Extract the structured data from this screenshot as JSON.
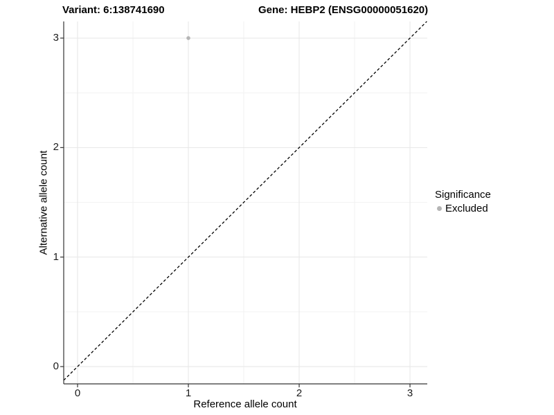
{
  "figure": {
    "background": "#ffffff"
  },
  "chart_data": {
    "type": "scatter",
    "title_left": "Variant: 6:138741690",
    "title_right": "Gene: HEBP2 (ENSG00000051620)",
    "xlabel": "Reference allele count",
    "ylabel": "Alternative allele count",
    "xlim": [
      -0.125,
      3.156
    ],
    "ylim": [
      -0.158,
      3.152
    ],
    "x_ticks": [
      0,
      1,
      2,
      3
    ],
    "y_ticks": [
      0,
      1,
      2,
      3
    ],
    "x_minor_ticks": [
      0.5,
      1.5,
      2.5
    ],
    "y_minor_ticks": [
      0.5,
      1.5,
      2.5
    ],
    "grid": "major+minor on white panel",
    "points": [
      {
        "x": 1,
        "y": 3,
        "series": "Excluded"
      }
    ],
    "identity_line": {
      "slope": 1,
      "intercept": 0,
      "style": "dashed"
    },
    "legend": {
      "position": "right",
      "title": "Significance",
      "items": [
        {
          "label": "Excluded",
          "color": "#b5b5b5"
        }
      ]
    },
    "colors": {
      "point": "#b5b5b5",
      "grid_major": "#e6e6e6",
      "grid_minor": "#f2f2f2",
      "axis_line": "#333333",
      "tick_mark": "#333333",
      "identity_line": "#000000",
      "text": "#000000"
    }
  }
}
